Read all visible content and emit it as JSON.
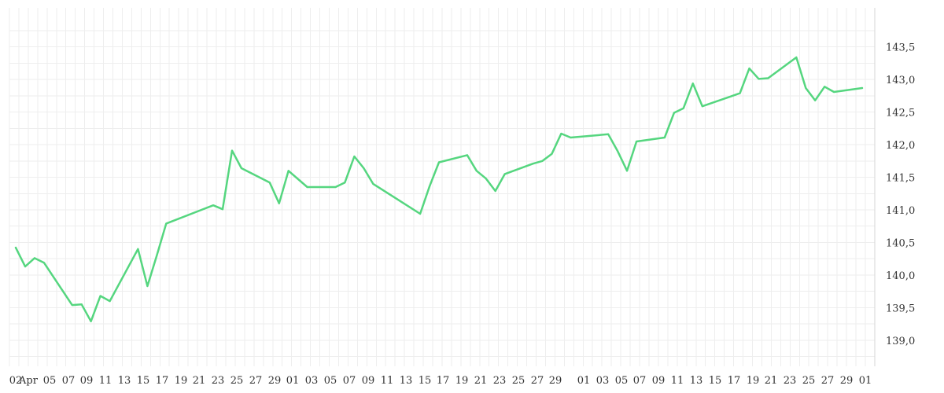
{
  "chart_data": {
    "type": "line",
    "grid": true,
    "line_color": "#55d67f",
    "ylim": [
      138.6,
      144.1
    ],
    "y_ticks": [
      "139,0",
      "139,5",
      "140,0",
      "140,5",
      "141,0",
      "141,5",
      "142,0",
      "142,5",
      "143,0",
      "143,5"
    ],
    "x_tick_labels": [
      "02",
      "Apr",
      "05",
      "07",
      "09",
      "11",
      "13",
      "15",
      "17",
      "19",
      "21",
      "23",
      "25",
      "27",
      "29",
      "01",
      "03",
      "05",
      "07",
      "09",
      "11",
      "13",
      "15",
      "17",
      "19",
      "21",
      "23",
      "25",
      "27",
      "29",
      "01",
      "03",
      "05",
      "07",
      "09",
      "11",
      "13",
      "15",
      "17",
      "19",
      "21",
      "23",
      "25",
      "27",
      "29",
      "01"
    ],
    "series": [
      {
        "values": [
          [
            0.0,
            140.42
          ],
          [
            1.0,
            140.13
          ],
          [
            2.0,
            140.26
          ],
          [
            3.0,
            140.19
          ],
          [
            6.0,
            139.54
          ],
          [
            7.0,
            139.55
          ],
          [
            8.0,
            139.29
          ],
          [
            9.0,
            139.68
          ],
          [
            10.0,
            139.6
          ],
          [
            13.0,
            140.4
          ],
          [
            14.0,
            139.83
          ],
          [
            15.0,
            140.3
          ],
          [
            16.0,
            140.79
          ],
          [
            21.0,
            141.07
          ],
          [
            22.0,
            141.01
          ],
          [
            23.0,
            141.91
          ],
          [
            24.0,
            141.64
          ],
          [
            27.0,
            141.42
          ],
          [
            28.0,
            141.1
          ],
          [
            29.0,
            141.6
          ],
          [
            31.0,
            141.35
          ],
          [
            34.0,
            141.35
          ],
          [
            35.0,
            141.42
          ],
          [
            36.0,
            141.82
          ],
          [
            37.0,
            141.64
          ],
          [
            38.0,
            141.4
          ],
          [
            43.0,
            140.94
          ],
          [
            44.0,
            141.36
          ],
          [
            45.0,
            141.73
          ],
          [
            48.0,
            141.84
          ],
          [
            49.0,
            141.6
          ],
          [
            50.0,
            141.48
          ],
          [
            51.0,
            141.29
          ],
          [
            52.0,
            141.55
          ],
          [
            55.0,
            141.71
          ],
          [
            56.0,
            141.75
          ],
          [
            57.0,
            141.86
          ],
          [
            58.0,
            142.17
          ],
          [
            59.0,
            142.11
          ],
          [
            63.0,
            142.16
          ],
          [
            64.0,
            141.9
          ],
          [
            65.0,
            141.6
          ],
          [
            66.0,
            142.05
          ],
          [
            69.0,
            142.11
          ],
          [
            70.0,
            142.49
          ],
          [
            71.0,
            142.56
          ],
          [
            72.0,
            142.94
          ],
          [
            73.0,
            142.59
          ],
          [
            76.0,
            142.74
          ],
          [
            77.0,
            142.79
          ],
          [
            78.0,
            143.17
          ],
          [
            79.0,
            143.01
          ],
          [
            80.0,
            143.02
          ],
          [
            83.0,
            143.34
          ],
          [
            84.0,
            142.87
          ],
          [
            85.0,
            142.68
          ],
          [
            86.0,
            142.89
          ],
          [
            87.0,
            142.81
          ],
          [
            90.0,
            142.87
          ]
        ]
      }
    ]
  }
}
